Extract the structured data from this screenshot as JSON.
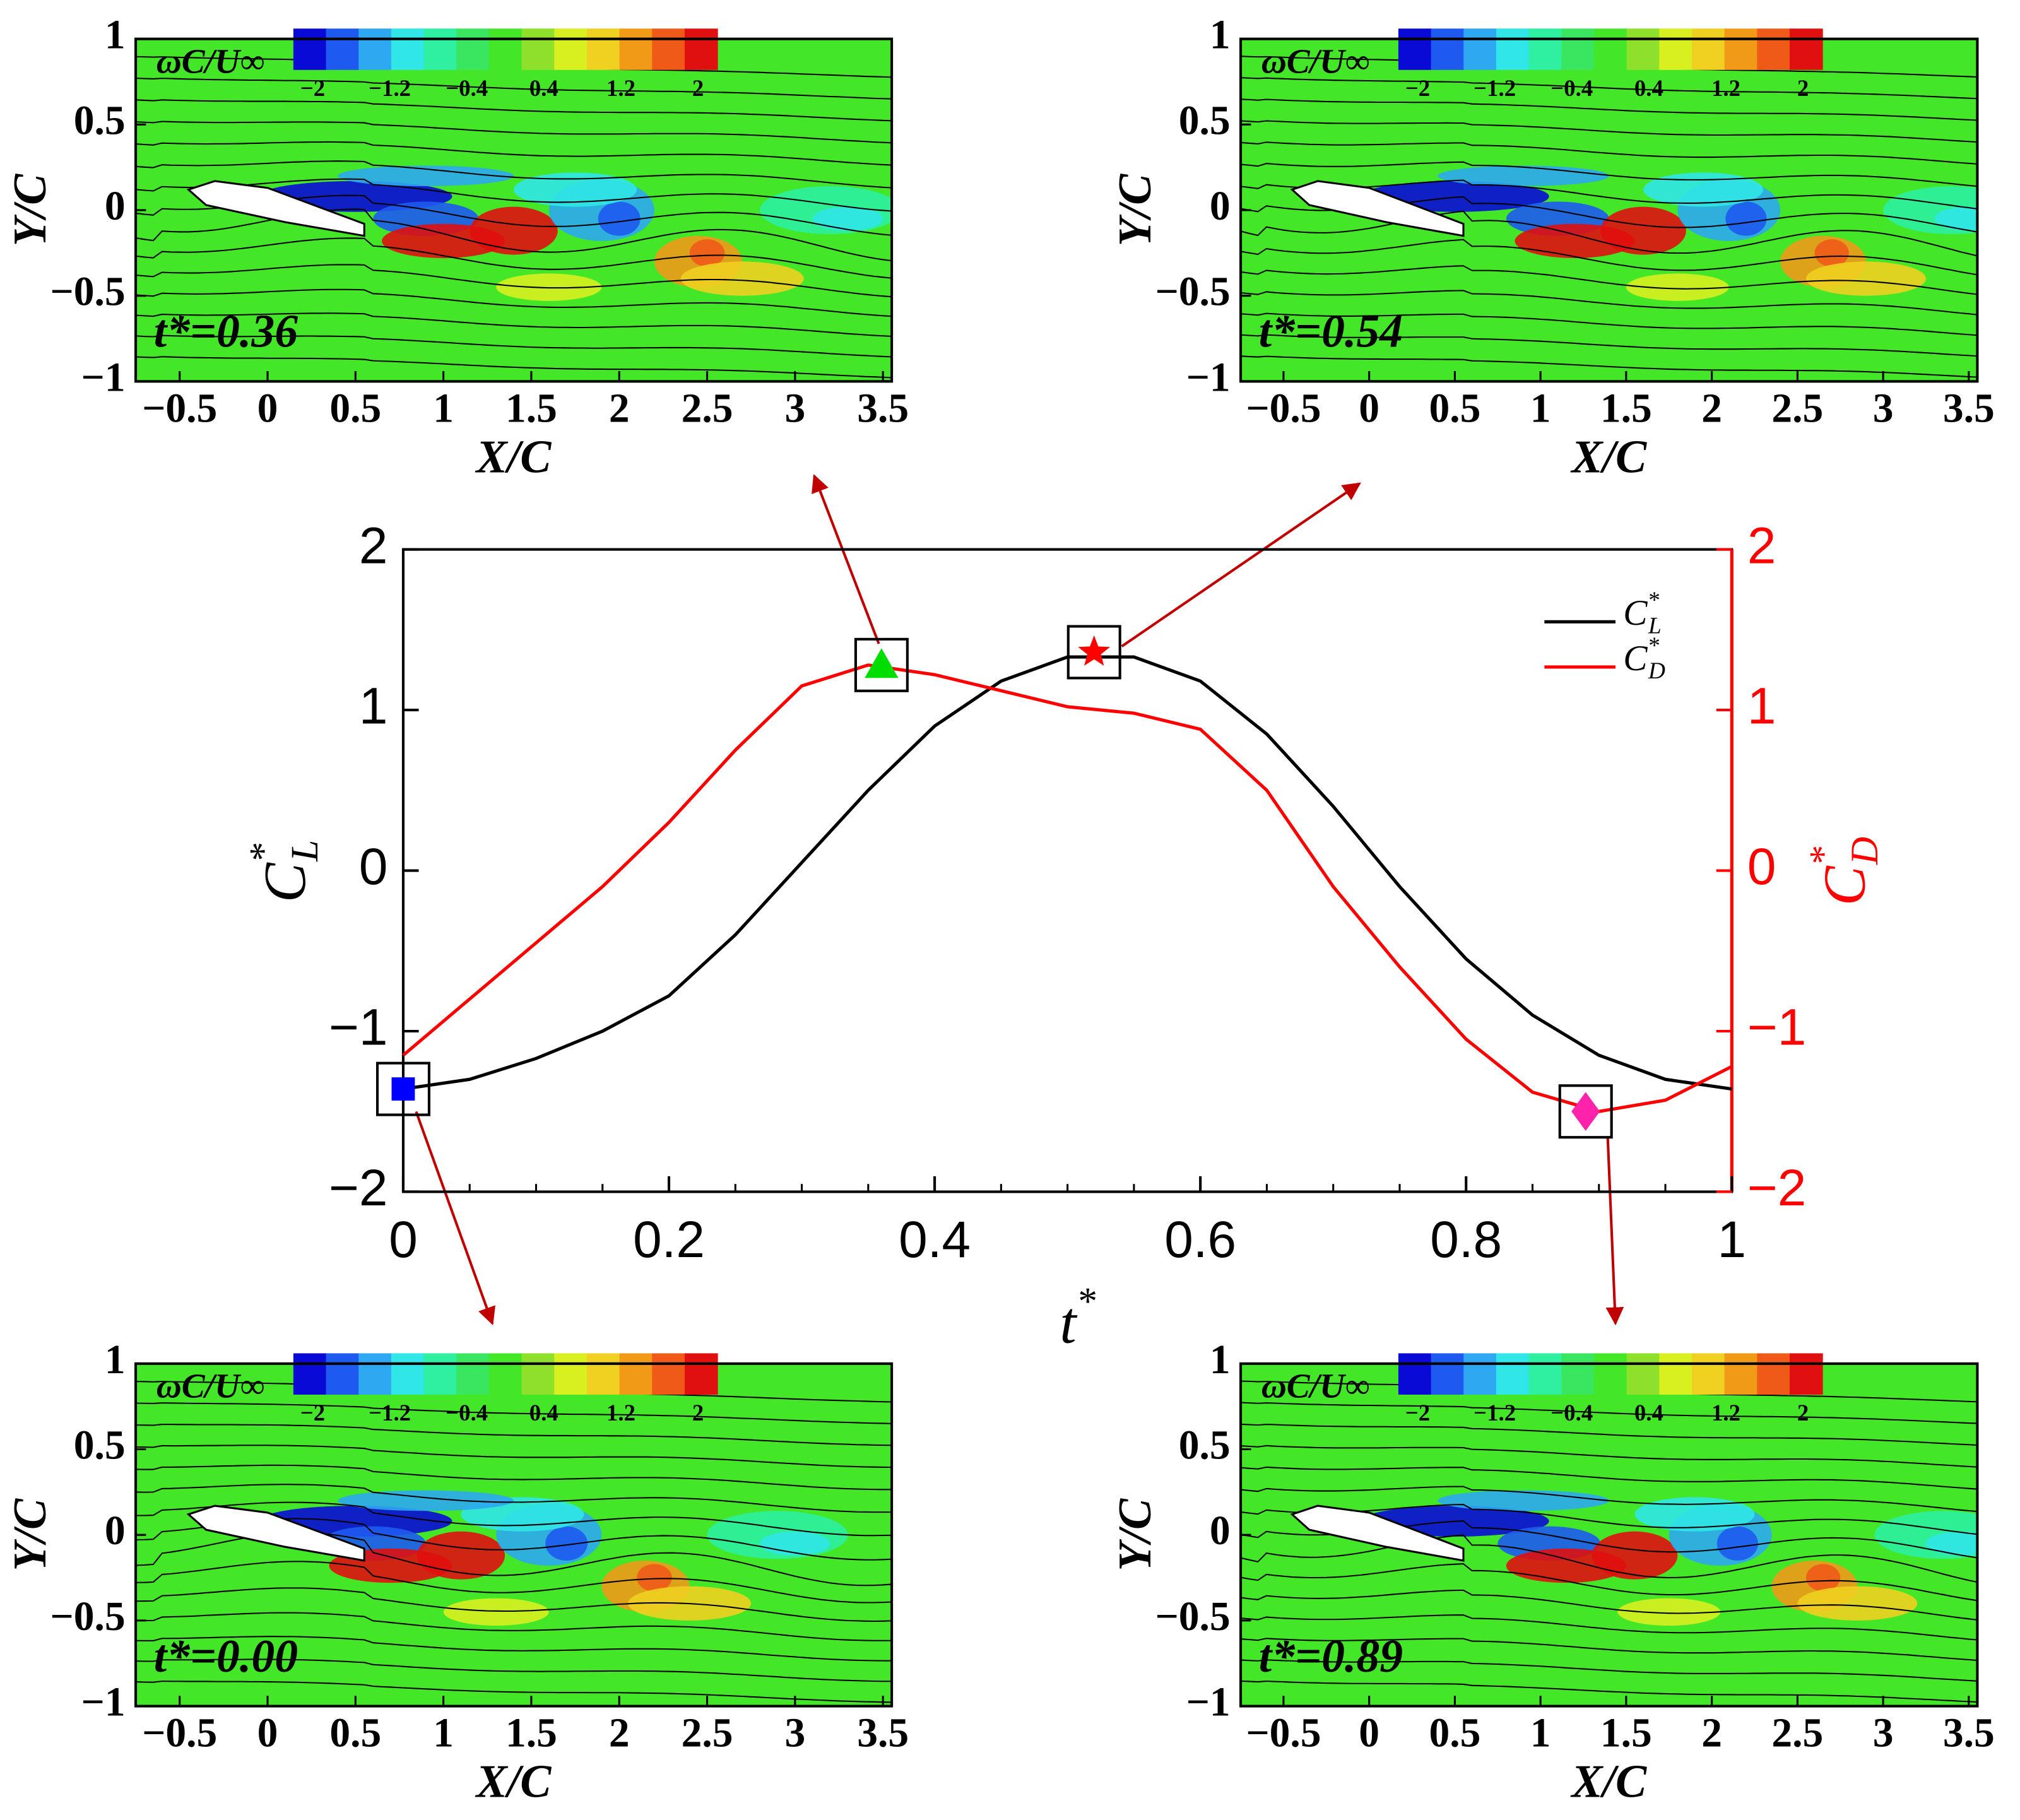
{
  "chart_data": [
    {
      "type": "line",
      "xlabel": {
        "base": "t",
        "sup": "*"
      },
      "ylabel": {
        "base": "C",
        "sup": "*",
        "sub": "L"
      },
      "y2label": {
        "base": "C",
        "sup": "*",
        "sub": "D"
      },
      "x": [
        0,
        0.05,
        0.1,
        0.15,
        0.2,
        0.25,
        0.3,
        0.35,
        0.4,
        0.45,
        0.5,
        0.55,
        0.6,
        0.65,
        0.7,
        0.75,
        0.8,
        0.85,
        0.9,
        0.95,
        1
      ],
      "xlim": [
        0,
        1
      ],
      "xticks": [
        0,
        0.2,
        0.4,
        0.6,
        0.8,
        1
      ],
      "ylim": [
        -2,
        2
      ],
      "yticks": [
        {
          "value": -2,
          "label": "−2"
        },
        {
          "value": -1,
          "label": "−1"
        },
        0,
        1,
        2
      ],
      "y2lim": [
        -2,
        2
      ],
      "y2ticks": [
        {
          "value": -2,
          "label": "−2"
        },
        {
          "value": -1,
          "label": "−1"
        },
        0,
        1,
        2
      ],
      "y2color": "#ff0000",
      "series": [
        {
          "name": {
            "base": "C",
            "sup": "*",
            "sub": "L"
          },
          "color": "#000000",
          "values": [
            -1.36,
            -1.3,
            -1.17,
            -1.0,
            -0.78,
            -0.4,
            0.05,
            0.5,
            0.9,
            1.18,
            1.33,
            1.33,
            1.18,
            0.85,
            0.4,
            -0.1,
            -0.55,
            -0.9,
            -1.15,
            -1.3,
            -1.36
          ]
        },
        {
          "name": {
            "base": "C",
            "sup": "*",
            "sub": "D"
          },
          "color": "#ff0000",
          "axis": "y2",
          "values": [
            -1.15,
            -0.8,
            -0.45,
            -0.1,
            0.3,
            0.75,
            1.15,
            1.28,
            1.22,
            1.12,
            1.02,
            0.98,
            0.88,
            0.5,
            -0.1,
            -0.6,
            -1.05,
            -1.38,
            -1.5,
            -1.43,
            -1.22
          ]
        }
      ],
      "markers": [
        {
          "x": 0,
          "y": -1.36,
          "shape": "square",
          "color": "#0000ff"
        },
        {
          "x": 0.36,
          "y": 1.28,
          "shape": "triangle",
          "color": "#00dd00",
          "axis": "y2"
        },
        {
          "x": 0.52,
          "y": 1.36,
          "shape": "star",
          "color": "#ff0000"
        },
        {
          "x": 0.89,
          "y": -1.5,
          "shape": "diamond",
          "color": "#ff22aa",
          "axis": "y2"
        }
      ]
    },
    {
      "type": "contour",
      "annotation": "t*=0.36",
      "xlabel": "X/C",
      "ylabel": "Y/C",
      "colorbar_title": "ωC/U∞",
      "clim": [
        -2.2,
        2.2
      ],
      "colorbar_ticks": [
        {
          "value": -2,
          "label": "−2"
        },
        {
          "value": -1.2,
          "label": "−1.2"
        },
        {
          "value": -0.4,
          "label": "−0.4"
        },
        0.4,
        1.2,
        2
      ],
      "colorbar_colors": [
        "#0a0ad6",
        "#1e5af0",
        "#2ea8f0",
        "#30e6e6",
        "#2ef0a0",
        "#3ae660",
        "#44e628",
        "#8ee02a",
        "#d8f020",
        "#f0d020",
        "#f09a18",
        "#f05a18",
        "#e01010"
      ],
      "xlim": [
        -0.75,
        3.55
      ],
      "xticks": [
        {
          "value": -0.5,
          "label": "−0.5"
        },
        0,
        0.5,
        1,
        1.5,
        2,
        2.5,
        3,
        3.5
      ],
      "ylim": [
        -1,
        1
      ],
      "yticks": [
        {
          "value": -1,
          "label": "−1"
        },
        {
          "value": -0.5,
          "label": "−0.5"
        },
        0,
        0.5,
        1
      ]
    },
    {
      "type": "contour",
      "annotation": "t*=0.54",
      "xlabel": "X/C",
      "ylabel": "Y/C",
      "colorbar_title": "ωC/U∞",
      "clim": [
        -2.2,
        2.2
      ],
      "colorbar_ticks": [
        {
          "value": -2,
          "label": "−2"
        },
        {
          "value": -1.2,
          "label": "−1.2"
        },
        {
          "value": -0.4,
          "label": "−0.4"
        },
        0.4,
        1.2,
        2
      ],
      "colorbar_colors": [
        "#0a0ad6",
        "#1e5af0",
        "#2ea8f0",
        "#30e6e6",
        "#2ef0a0",
        "#3ae660",
        "#44e628",
        "#8ee02a",
        "#d8f020",
        "#f0d020",
        "#f09a18",
        "#f05a18",
        "#e01010"
      ],
      "xlim": [
        -0.75,
        3.55
      ],
      "xticks": [
        {
          "value": -0.5,
          "label": "−0.5"
        },
        0,
        0.5,
        1,
        1.5,
        2,
        2.5,
        3,
        3.5
      ],
      "ylim": [
        -1,
        1
      ],
      "yticks": [
        {
          "value": -1,
          "label": "−1"
        },
        {
          "value": -0.5,
          "label": "−0.5"
        },
        0,
        0.5,
        1
      ]
    },
    {
      "type": "contour",
      "annotation": "t*=0.00",
      "xlabel": "X/C",
      "ylabel": "Y/C",
      "colorbar_title": "ωC/U∞",
      "clim": [
        -2.2,
        2.2
      ],
      "colorbar_ticks": [
        {
          "value": -2,
          "label": "−2"
        },
        {
          "value": -1.2,
          "label": "−1.2"
        },
        {
          "value": -0.4,
          "label": "−0.4"
        },
        0.4,
        1.2,
        2
      ],
      "colorbar_colors": [
        "#0a0ad6",
        "#1e5af0",
        "#2ea8f0",
        "#30e6e6",
        "#2ef0a0",
        "#3ae660",
        "#44e628",
        "#8ee02a",
        "#d8f020",
        "#f0d020",
        "#f09a18",
        "#f05a18",
        "#e01010"
      ],
      "xlim": [
        -0.75,
        3.55
      ],
      "xticks": [
        {
          "value": -0.5,
          "label": "−0.5"
        },
        0,
        0.5,
        1,
        1.5,
        2,
        2.5,
        3,
        3.5
      ],
      "ylim": [
        -1,
        1
      ],
      "yticks": [
        {
          "value": -1,
          "label": "−1"
        },
        {
          "value": -0.5,
          "label": "−0.5"
        },
        0,
        0.5,
        1
      ]
    },
    {
      "type": "contour",
      "annotation": "t*=0.89",
      "xlabel": "X/C",
      "ylabel": "Y/C",
      "colorbar_title": "ωC/U∞",
      "clim": [
        -2.2,
        2.2
      ],
      "colorbar_ticks": [
        {
          "value": -2,
          "label": "−2"
        },
        {
          "value": -1.2,
          "label": "−1.2"
        },
        {
          "value": -0.4,
          "label": "−0.4"
        },
        0.4,
        1.2,
        2
      ],
      "colorbar_colors": [
        "#0a0ad6",
        "#1e5af0",
        "#2ea8f0",
        "#30e6e6",
        "#2ef0a0",
        "#3ae660",
        "#44e628",
        "#8ee02a",
        "#d8f020",
        "#f0d020",
        "#f09a18",
        "#f05a18",
        "#e01010"
      ],
      "xlim": [
        -0.75,
        3.55
      ],
      "xticks": [
        {
          "value": -0.5,
          "label": "−0.5"
        },
        0,
        0.5,
        1,
        1.5,
        2,
        2.5,
        3,
        3.5
      ],
      "ylim": [
        -1,
        1
      ],
      "yticks": [
        {
          "value": -1,
          "label": "−1"
        },
        {
          "value": -0.5,
          "label": "−0.5"
        },
        0,
        0.5,
        1
      ]
    }
  ]
}
